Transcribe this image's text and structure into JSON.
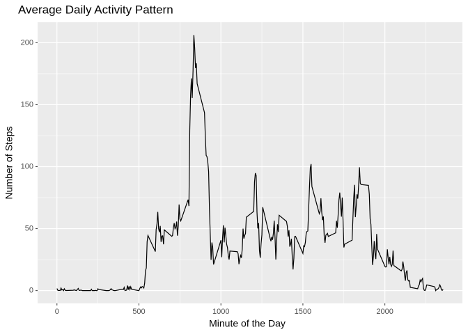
{
  "chart_data": {
    "type": "line",
    "title": "Average Daily Activity Pattern",
    "x_label": "Minute of the Day",
    "y_label": "Number of Steps",
    "x": [
      0,
      5,
      10,
      15,
      20,
      25,
      30,
      35,
      40,
      45,
      50,
      55,
      100,
      105,
      110,
      115,
      120,
      125,
      130,
      135,
      140,
      145,
      150,
      155,
      200,
      205,
      210,
      215,
      220,
      225,
      230,
      235,
      240,
      245,
      250,
      255,
      300,
      305,
      310,
      315,
      320,
      325,
      330,
      335,
      340,
      345,
      350,
      355,
      400,
      405,
      410,
      415,
      420,
      425,
      430,
      435,
      440,
      445,
      450,
      455,
      500,
      505,
      510,
      515,
      520,
      525,
      530,
      535,
      540,
      545,
      550,
      555,
      600,
      605,
      610,
      615,
      620,
      625,
      630,
      635,
      640,
      645,
      650,
      655,
      700,
      705,
      710,
      715,
      720,
      725,
      730,
      735,
      740,
      745,
      750,
      755,
      800,
      805,
      810,
      815,
      820,
      825,
      830,
      835,
      840,
      845,
      850,
      855,
      900,
      905,
      910,
      915,
      920,
      925,
      930,
      935,
      940,
      945,
      950,
      955,
      1000,
      1005,
      1010,
      1015,
      1020,
      1025,
      1030,
      1035,
      1040,
      1045,
      1050,
      1055,
      1100,
      1105,
      1110,
      1115,
      1120,
      1125,
      1130,
      1135,
      1140,
      1145,
      1150,
      1155,
      1200,
      1205,
      1210,
      1215,
      1220,
      1225,
      1230,
      1235,
      1240,
      1245,
      1250,
      1255,
      1300,
      1305,
      1310,
      1315,
      1320,
      1325,
      1330,
      1335,
      1340,
      1345,
      1350,
      1355,
      1400,
      1405,
      1410,
      1415,
      1420,
      1425,
      1430,
      1435,
      1440,
      1445,
      1450,
      1455,
      1500,
      1505,
      1510,
      1515,
      1520,
      1525,
      1530,
      1535,
      1540,
      1545,
      1550,
      1555,
      1600,
      1605,
      1610,
      1615,
      1620,
      1625,
      1630,
      1635,
      1640,
      1645,
      1650,
      1655,
      1700,
      1705,
      1710,
      1715,
      1720,
      1725,
      1730,
      1735,
      1740,
      1745,
      1750,
      1755,
      1800,
      1805,
      1810,
      1815,
      1820,
      1825,
      1830,
      1835,
      1840,
      1845,
      1850,
      1855,
      1900,
      1905,
      1910,
      1915,
      1920,
      1925,
      1930,
      1935,
      1940,
      1945,
      1950,
      1955,
      2000,
      2005,
      2010,
      2015,
      2020,
      2025,
      2030,
      2035,
      2040,
      2045,
      2050,
      2055,
      2100,
      2105,
      2110,
      2115,
      2120,
      2125,
      2130,
      2135,
      2140,
      2145,
      2150,
      2155,
      2200,
      2205,
      2210,
      2215,
      2220,
      2225,
      2230,
      2235,
      2240,
      2245,
      2250,
      2255,
      2300,
      2305,
      2310,
      2315,
      2320,
      2325,
      2330,
      2335,
      2340,
      2345,
      2350,
      2355
    ],
    "series": [
      {
        "name": "steps",
        "color": "#000000",
        "values": [
          1.7,
          0.3,
          0.1,
          0.2,
          0.1,
          2.1,
          0.5,
          0.9,
          0,
          1.5,
          0.3,
          0.1,
          0.3,
          0.7,
          0.2,
          0.3,
          0,
          1.1,
          1.8,
          0.2,
          0.2,
          0.4,
          0.3,
          0,
          0,
          0,
          1.1,
          0,
          0,
          0.1,
          0,
          0.2,
          0,
          0,
          1.5,
          0.9,
          0,
          0,
          0,
          0,
          0.2,
          0.6,
          1.6,
          0.6,
          0.5,
          0.1,
          0,
          0,
          1.2,
          0.9,
          2.6,
          0,
          0.3,
          0.4,
          4.1,
          0.7,
          3.5,
          0.8,
          3.1,
          1.1,
          0,
          1.6,
          3,
          2.2,
          3.3,
          3,
          2.1,
          6.1,
          16,
          18.3,
          39.5,
          44.5,
          31.5,
          49.3,
          53.8,
          63.5,
          50,
          47.1,
          52.2,
          39.3,
          44,
          44.2,
          37.4,
          49,
          43.8,
          44.4,
          50.5,
          54.5,
          49.9,
          51,
          55.7,
          44.3,
          52.3,
          69.5,
          57.8,
          56.2,
          73.4,
          68.2,
          129.4,
          157.5,
          171.2,
          155.4,
          177.3,
          206.2,
          195.9,
          179.6,
          183.4,
          167,
          143.5,
          124,
          109.1,
          108.1,
          103.7,
          96,
          66.2,
          45.2,
          24.8,
          38.8,
          35,
          21.1,
          40.6,
          27,
          42.4,
          52.7,
          38.9,
          50.8,
          44.3,
          37.4,
          34.7,
          28.3,
          25.1,
          31.9,
          31.4,
          29.7,
          21.3,
          25.5,
          28.4,
          26.5,
          33.4,
          50,
          42,
          44.6,
          46,
          59.2,
          63.9,
          87.7,
          94.8,
          92.8,
          63.4,
          50.2,
          54.5,
          32.4,
          26.5,
          37.7,
          45.1,
          67.3,
          42.3,
          39.9,
          43.3,
          41,
          46.2,
          56.4,
          42.8,
          25.1,
          40,
          53.5,
          47.3,
          60.8,
          55.8,
          52,
          43.6,
          48.7,
          35.5,
          37.5,
          41.8,
          27.5,
          17.1,
          26.1,
          43.6,
          43.8,
          30,
          36.1,
          35.5,
          38.8,
          46,
          47.8,
          48.1,
          65.3,
          82.9,
          98.7,
          102.1,
          84,
          62.1,
          64.1,
          74.5,
          63.2,
          56.9,
          59.8,
          43.9,
          38.6,
          44.7,
          45.5,
          46.2,
          43.7,
          46.6,
          56.3,
          50.7,
          61.2,
          73.4,
          79.1,
          68.9,
          59.7,
          75.1,
          56.5,
          34.8,
          37.5,
          40.7,
          58,
          74.7,
          85.3,
          59.3,
          67.8,
          77.7,
          74.2,
          85.3,
          99.5,
          86.6,
          85.6,
          84.9,
          77.8,
          58,
          53.4,
          36.3,
          20.7,
          27.4,
          40,
          30.2,
          25.5,
          45.7,
          33.5,
          19.6,
          19,
          19.3,
          33.3,
          26.8,
          21.2,
          27.3,
          21.3,
          19.5,
          21.3,
          32.3,
          20.2,
          15.9,
          17.2,
          23.5,
          19.2,
          12.5,
          8,
          14.7,
          16.3,
          8.7,
          7.8,
          8.1,
          2.6,
          1.5,
          3.7,
          4.8,
          8.5,
          7.1,
          8.7,
          9.8,
          2.2,
          0.3,
          0.1,
          1.6,
          4.6,
          3.3,
          2.8,
          0,
          0.8,
          1,
          1.6,
          2.6,
          4.7,
          3.3,
          0.6,
          0.2,
          1.1
        ]
      }
    ],
    "xlim": [
      -118,
      2473
    ],
    "xticks": [
      0,
      500,
      1000,
      1500,
      2000
    ],
    "xminor": [
      250,
      750,
      1250,
      1750,
      2250
    ],
    "ylim": [
      -10.3,
      216.5
    ],
    "yticks": [
      0,
      50,
      100,
      150,
      200
    ],
    "yminor": [
      25,
      75,
      125,
      175
    ],
    "grid": true
  }
}
